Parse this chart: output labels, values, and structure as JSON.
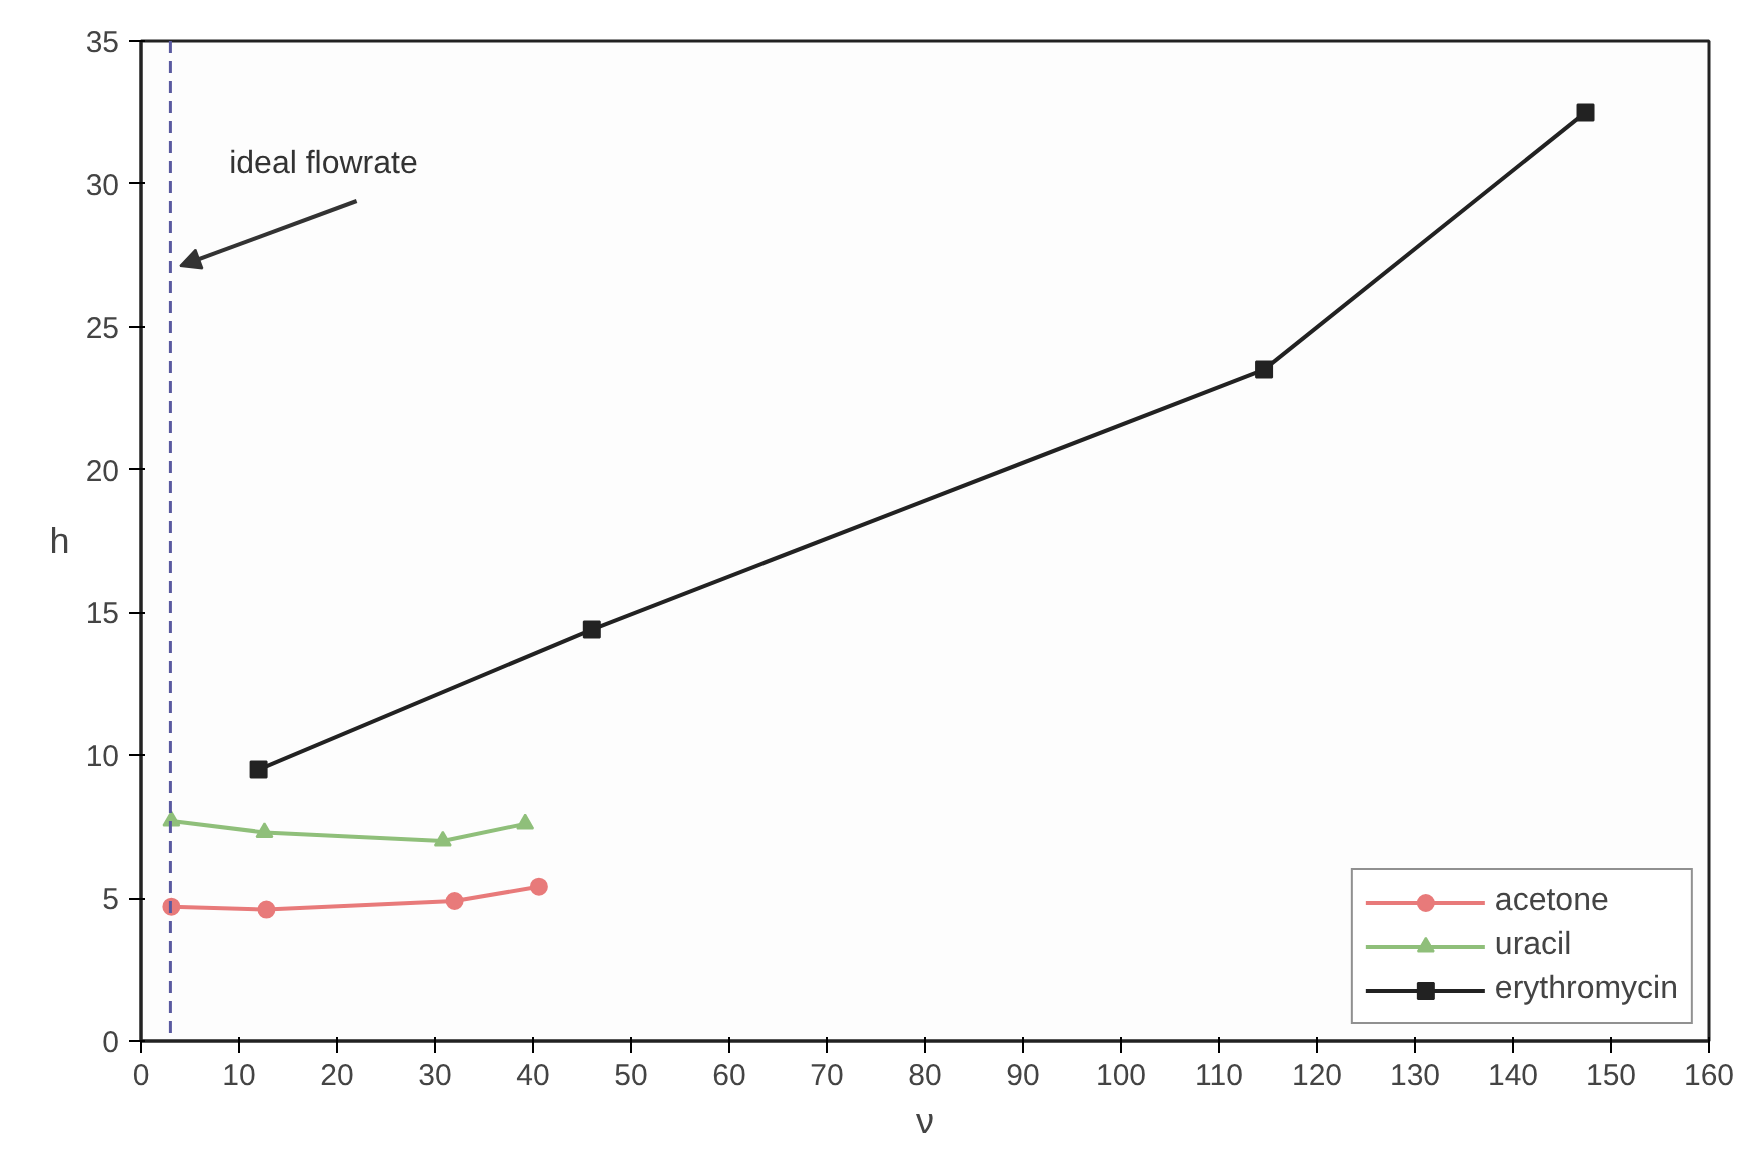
{
  "chart_data": {
    "type": "line",
    "xlabel": "ν",
    "ylabel": "h",
    "xlim": [
      0,
      160
    ],
    "xticks": [
      0,
      10,
      20,
      30,
      40,
      50,
      60,
      70,
      80,
      90,
      100,
      110,
      120,
      130,
      140,
      150,
      160
    ],
    "ylim": [
      0,
      35
    ],
    "yticks": [
      0,
      5,
      10,
      15,
      20,
      25,
      30,
      35
    ],
    "grid": false,
    "legend": "bottom right",
    "series": [
      {
        "name": "acetone",
        "color": "#e87a7a",
        "marker": "circle",
        "x": [
          3.1,
          12.8,
          32.0,
          40.6
        ],
        "values": [
          4.7,
          4.6,
          4.9,
          5.4
        ]
      },
      {
        "name": "uracil",
        "color": "#8fbf7a",
        "marker": "triangle",
        "x": [
          3.1,
          12.6,
          30.8,
          39.2
        ],
        "values": [
          7.7,
          7.3,
          7.0,
          7.6
        ]
      },
      {
        "name": "erythromycin",
        "color": "#222222",
        "marker": "square",
        "x": [
          12.0,
          46.0,
          114.6,
          147.4
        ],
        "values": [
          9.5,
          14.4,
          23.5,
          32.5
        ]
      }
    ],
    "ref_lines": [
      {
        "axis": "x",
        "value": 3,
        "label": "ideal flowrate",
        "color": "#5a5aa0",
        "line_style": "dashed"
      }
    ]
  }
}
